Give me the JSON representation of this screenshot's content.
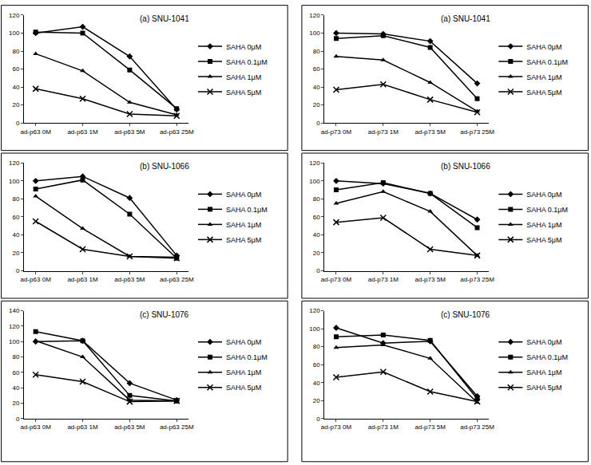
{
  "chart_data": [
    {
      "type": "line",
      "title": "(a) SNU-1041",
      "legend": "right",
      "grid": false,
      "categories": [
        "ad-p63 0M",
        "ad-p63 1M",
        "ad-p63 5M",
        "ad-p63 25M"
      ],
      "ylim": [
        0,
        120
      ],
      "yticks": [
        0,
        20,
        40,
        60,
        80,
        100,
        120
      ],
      "series": [
        {
          "name": "SAHA 0μM",
          "color": "#000000",
          "marker": "diamond",
          "values": [
            100,
            107,
            74,
            15
          ]
        },
        {
          "name": "SAHA 0.1μM",
          "color": "#000000",
          "marker": "square",
          "values": [
            101,
            100,
            59,
            16
          ]
        },
        {
          "name": "SAHA 1μM",
          "color": "#000000",
          "marker": "triangle",
          "values": [
            77,
            58,
            23,
            9
          ]
        },
        {
          "name": "SAHA 5μM",
          "color": "#000000",
          "marker": "x",
          "values": [
            38,
            27,
            10,
            8
          ]
        }
      ]
    },
    {
      "type": "line",
      "title": "(a) SNU-1041",
      "legend": "right",
      "grid": false,
      "categories": [
        "ad-p73 0M",
        "ad-p73 1M",
        "ad-p73 5M",
        "ad-p73 25M"
      ],
      "ylim": [
        0,
        120
      ],
      "yticks": [
        0,
        20,
        40,
        60,
        80,
        100,
        120
      ],
      "series": [
        {
          "name": "SAHA 0μM",
          "color": "#000000",
          "marker": "diamond",
          "values": [
            100,
            99,
            91,
            44
          ]
        },
        {
          "name": "SAHA 0.1μM",
          "color": "#000000",
          "marker": "square",
          "values": [
            94,
            97,
            84,
            27
          ]
        },
        {
          "name": "SAHA 1μM",
          "color": "#000000",
          "marker": "triangle",
          "values": [
            74,
            70,
            45,
            13
          ]
        },
        {
          "name": "SAHA 5μM",
          "color": "#000000",
          "marker": "x",
          "values": [
            37,
            43,
            26,
            12
          ]
        }
      ]
    },
    {
      "type": "line",
      "title": "(b) SNU-1066",
      "legend": "right",
      "grid": false,
      "categories": [
        "ad-p63 0M",
        "ad-p63 1M",
        "ad-p63 5M",
        "ad-p63 25M"
      ],
      "ylim": [
        0,
        120
      ],
      "yticks": [
        0,
        20,
        40,
        60,
        80,
        100,
        120
      ],
      "series": [
        {
          "name": "SAHA 0μM",
          "color": "#000000",
          "marker": "diamond",
          "values": [
            100,
            105,
            81,
            17
          ]
        },
        {
          "name": "SAHA 0.1μM",
          "color": "#000000",
          "marker": "square",
          "values": [
            91,
            101,
            63,
            14
          ]
        },
        {
          "name": "SAHA 1μM",
          "color": "#000000",
          "marker": "triangle",
          "values": [
            83,
            47,
            16,
            15
          ]
        },
        {
          "name": "SAHA 5μM",
          "color": "#000000",
          "marker": "x",
          "values": [
            55,
            24,
            16,
            14
          ]
        }
      ]
    },
    {
      "type": "line",
      "title": "(b) SNU-1066",
      "legend": "right",
      "grid": false,
      "categories": [
        "ad-p73 0M",
        "ad-p73 1M",
        "ad-p73 5M",
        "ad-p73 25M"
      ],
      "ylim": [
        0,
        120
      ],
      "yticks": [
        0,
        20,
        40,
        60,
        80,
        100,
        120
      ],
      "series": [
        {
          "name": "SAHA 0μM",
          "color": "#000000",
          "marker": "diamond",
          "values": [
            100,
            97,
            86,
            57
          ]
        },
        {
          "name": "SAHA 0.1μM",
          "color": "#000000",
          "marker": "square",
          "values": [
            90,
            98,
            86,
            48
          ]
        },
        {
          "name": "SAHA 1μM",
          "color": "#000000",
          "marker": "triangle",
          "values": [
            75,
            88,
            66,
            17
          ]
        },
        {
          "name": "SAHA 5μM",
          "color": "#000000",
          "marker": "x",
          "values": [
            54,
            59,
            24,
            17
          ]
        }
      ]
    },
    {
      "type": "line",
      "title": "(c) SNU-1076",
      "legend": "right",
      "grid": false,
      "categories": [
        "ad-p63 0M",
        "ad-p63 1M",
        "ad-p63 5M",
        "ad-p63 25M"
      ],
      "ylim": [
        0,
        140
      ],
      "yticks": [
        0,
        20,
        40,
        60,
        80,
        100,
        120,
        140
      ],
      "series": [
        {
          "name": "SAHA 0μM",
          "color": "#000000",
          "marker": "diamond",
          "values": [
            100,
            101,
            46,
            24
          ]
        },
        {
          "name": "SAHA 0.1μM",
          "color": "#000000",
          "marker": "square",
          "values": [
            113,
            101,
            30,
            23
          ]
        },
        {
          "name": "SAHA 1μM",
          "color": "#000000",
          "marker": "triangle",
          "values": [
            101,
            80,
            24,
            23
          ]
        },
        {
          "name": "SAHA 5μM",
          "color": "#000000",
          "marker": "x",
          "values": [
            57,
            48,
            22,
            23
          ]
        }
      ]
    },
    {
      "type": "line",
      "title": "(c) SNU-1076",
      "legend": "right",
      "grid": false,
      "categories": [
        "ad-p73 0M",
        "ad-p73 1M",
        "ad-p73 5M",
        "ad-p73 25M"
      ],
      "ylim": [
        0,
        120
      ],
      "yticks": [
        0,
        20,
        40,
        60,
        80,
        100,
        120
      ],
      "series": [
        {
          "name": "SAHA 0μM",
          "color": "#000000",
          "marker": "diamond",
          "values": [
            101,
            84,
            86,
            25
          ]
        },
        {
          "name": "SAHA 0.1μM",
          "color": "#000000",
          "marker": "square",
          "values": [
            91,
            93,
            87,
            22
          ]
        },
        {
          "name": "SAHA 1μM",
          "color": "#000000",
          "marker": "triangle",
          "values": [
            79,
            82,
            67,
            18
          ]
        },
        {
          "name": "SAHA 5μM",
          "color": "#000000",
          "marker": "x",
          "values": [
            46,
            52,
            30,
            19
          ]
        }
      ]
    }
  ]
}
